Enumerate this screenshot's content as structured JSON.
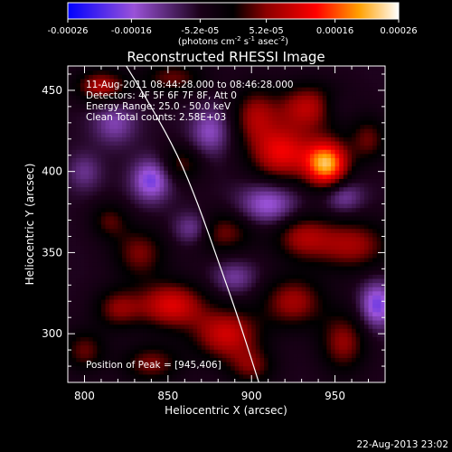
{
  "chart_data": {
    "type": "heatmap",
    "title": "Reconstructed RHESSI Image",
    "xlabel": "Heliocentric X (arcsec)",
    "ylabel": "Heliocentric Y (arcsec)",
    "xlim": [
      790,
      980
    ],
    "ylim": [
      270,
      465
    ],
    "x_ticks": [
      800,
      850,
      900,
      950
    ],
    "y_ticks": [
      300,
      350,
      400,
      450
    ],
    "colorbar": {
      "ticks": [
        "-0.00026",
        "-0.00016",
        "-5.2e-05",
        "5.2e-05",
        "0.00016",
        "0.00026"
      ],
      "tick_values": [
        -0.00026,
        -0.00016,
        -5.2e-05,
        5.2e-05,
        0.00016,
        0.00026
      ],
      "unit_parts": [
        "(photons cm",
        "-2",
        " s",
        "-1",
        " asec",
        "-2",
        ")"
      ],
      "range": [
        -0.00026,
        0.00026
      ]
    },
    "annotations": [
      "11-Aug-2011 08:44:28.000 to 08:46:28.000",
      "Detectors: 4F 5F 6F 7F 8F, Att 0",
      "Energy Range: 25.0 - 50.0 keV",
      "Clean    Total counts: 2.58E+03"
    ],
    "peak_label": "Position of Peak = [945,406]",
    "peak": [
      945,
      406
    ],
    "limb": [
      [
        822,
        470
      ],
      [
        840,
        440
      ],
      [
        856,
        410
      ],
      [
        868,
        380
      ],
      [
        880,
        345
      ],
      [
        892,
        310
      ],
      [
        905,
        268
      ]
    ],
    "sources": [
      {
        "x": 945,
        "y": 405,
        "amp": 0.00026,
        "sx": 9,
        "sy": 10
      },
      {
        "x": 918,
        "y": 412,
        "amp": 0.00017,
        "sx": 13,
        "sy": 12
      },
      {
        "x": 935,
        "y": 440,
        "amp": 0.00014,
        "sx": 14,
        "sy": 10
      },
      {
        "x": 902,
        "y": 435,
        "amp": 0.00011,
        "sx": 9,
        "sy": 12
      },
      {
        "x": 810,
        "y": 453,
        "amp": 0.00013,
        "sx": 11,
        "sy": 7
      },
      {
        "x": 853,
        "y": 458,
        "amp": 9e-05,
        "sx": 13,
        "sy": 7
      },
      {
        "x": 858,
        "y": 405,
        "amp": 8e-05,
        "sx": 9,
        "sy": 8
      },
      {
        "x": 960,
        "y": 355,
        "amp": 0.00012,
        "sx": 16,
        "sy": 11
      },
      {
        "x": 930,
        "y": 360,
        "amp": 0.00011,
        "sx": 12,
        "sy": 10
      },
      {
        "x": 882,
        "y": 363,
        "amp": 0.0001,
        "sx": 14,
        "sy": 9
      },
      {
        "x": 833,
        "y": 350,
        "amp": 0.0001,
        "sx": 11,
        "sy": 11
      },
      {
        "x": 815,
        "y": 370,
        "amp": 8e-05,
        "sx": 8,
        "sy": 8
      },
      {
        "x": 852,
        "y": 318,
        "amp": 0.00016,
        "sx": 14,
        "sy": 10
      },
      {
        "x": 885,
        "y": 300,
        "amp": 0.00015,
        "sx": 14,
        "sy": 11
      },
      {
        "x": 820,
        "y": 316,
        "amp": 0.0001,
        "sx": 10,
        "sy": 9
      },
      {
        "x": 925,
        "y": 320,
        "amp": 0.00012,
        "sx": 13,
        "sy": 11
      },
      {
        "x": 955,
        "y": 295,
        "amp": 0.00011,
        "sx": 10,
        "sy": 13
      },
      {
        "x": 840,
        "y": 282,
        "amp": 0.0001,
        "sx": 12,
        "sy": 8
      },
      {
        "x": 900,
        "y": 280,
        "amp": 9e-05,
        "sx": 10,
        "sy": 8
      },
      {
        "x": 800,
        "y": 290,
        "amp": 9e-05,
        "sx": 9,
        "sy": 9
      },
      {
        "x": 970,
        "y": 420,
        "amp": 9e-05,
        "sx": 8,
        "sy": 10
      },
      {
        "x": 840,
        "y": 395,
        "amp": -0.00013,
        "sx": 8,
        "sy": 9
      },
      {
        "x": 875,
        "y": 425,
        "amp": -9e-05,
        "sx": 8,
        "sy": 10
      },
      {
        "x": 865,
        "y": 365,
        "amp": -0.0001,
        "sx": 8,
        "sy": 7
      },
      {
        "x": 910,
        "y": 380,
        "amp": -0.00011,
        "sx": 12,
        "sy": 9
      },
      {
        "x": 975,
        "y": 318,
        "amp": -0.00013,
        "sx": 7,
        "sy": 10
      },
      {
        "x": 955,
        "y": 385,
        "amp": -8e-05,
        "sx": 8,
        "sy": 7
      },
      {
        "x": 818,
        "y": 430,
        "amp": -8e-05,
        "sx": 9,
        "sy": 9
      },
      {
        "x": 890,
        "y": 335,
        "amp": -7e-05,
        "sx": 9,
        "sy": 7
      },
      {
        "x": 800,
        "y": 400,
        "amp": -6e-05,
        "sx": 7,
        "sy": 8
      },
      {
        "x": 950,
        "y": 440,
        "amp": -5e-05,
        "sx": 8,
        "sy": 7
      }
    ],
    "grid": false,
    "colormap": [
      "#0000ff",
      "#9a52d8",
      "#1a0018",
      "#000000",
      "#8c0000",
      "#ff0000",
      "#ffa000",
      "#ffffff"
    ]
  },
  "footer_timestamp": "22-Aug-2013 23:02"
}
